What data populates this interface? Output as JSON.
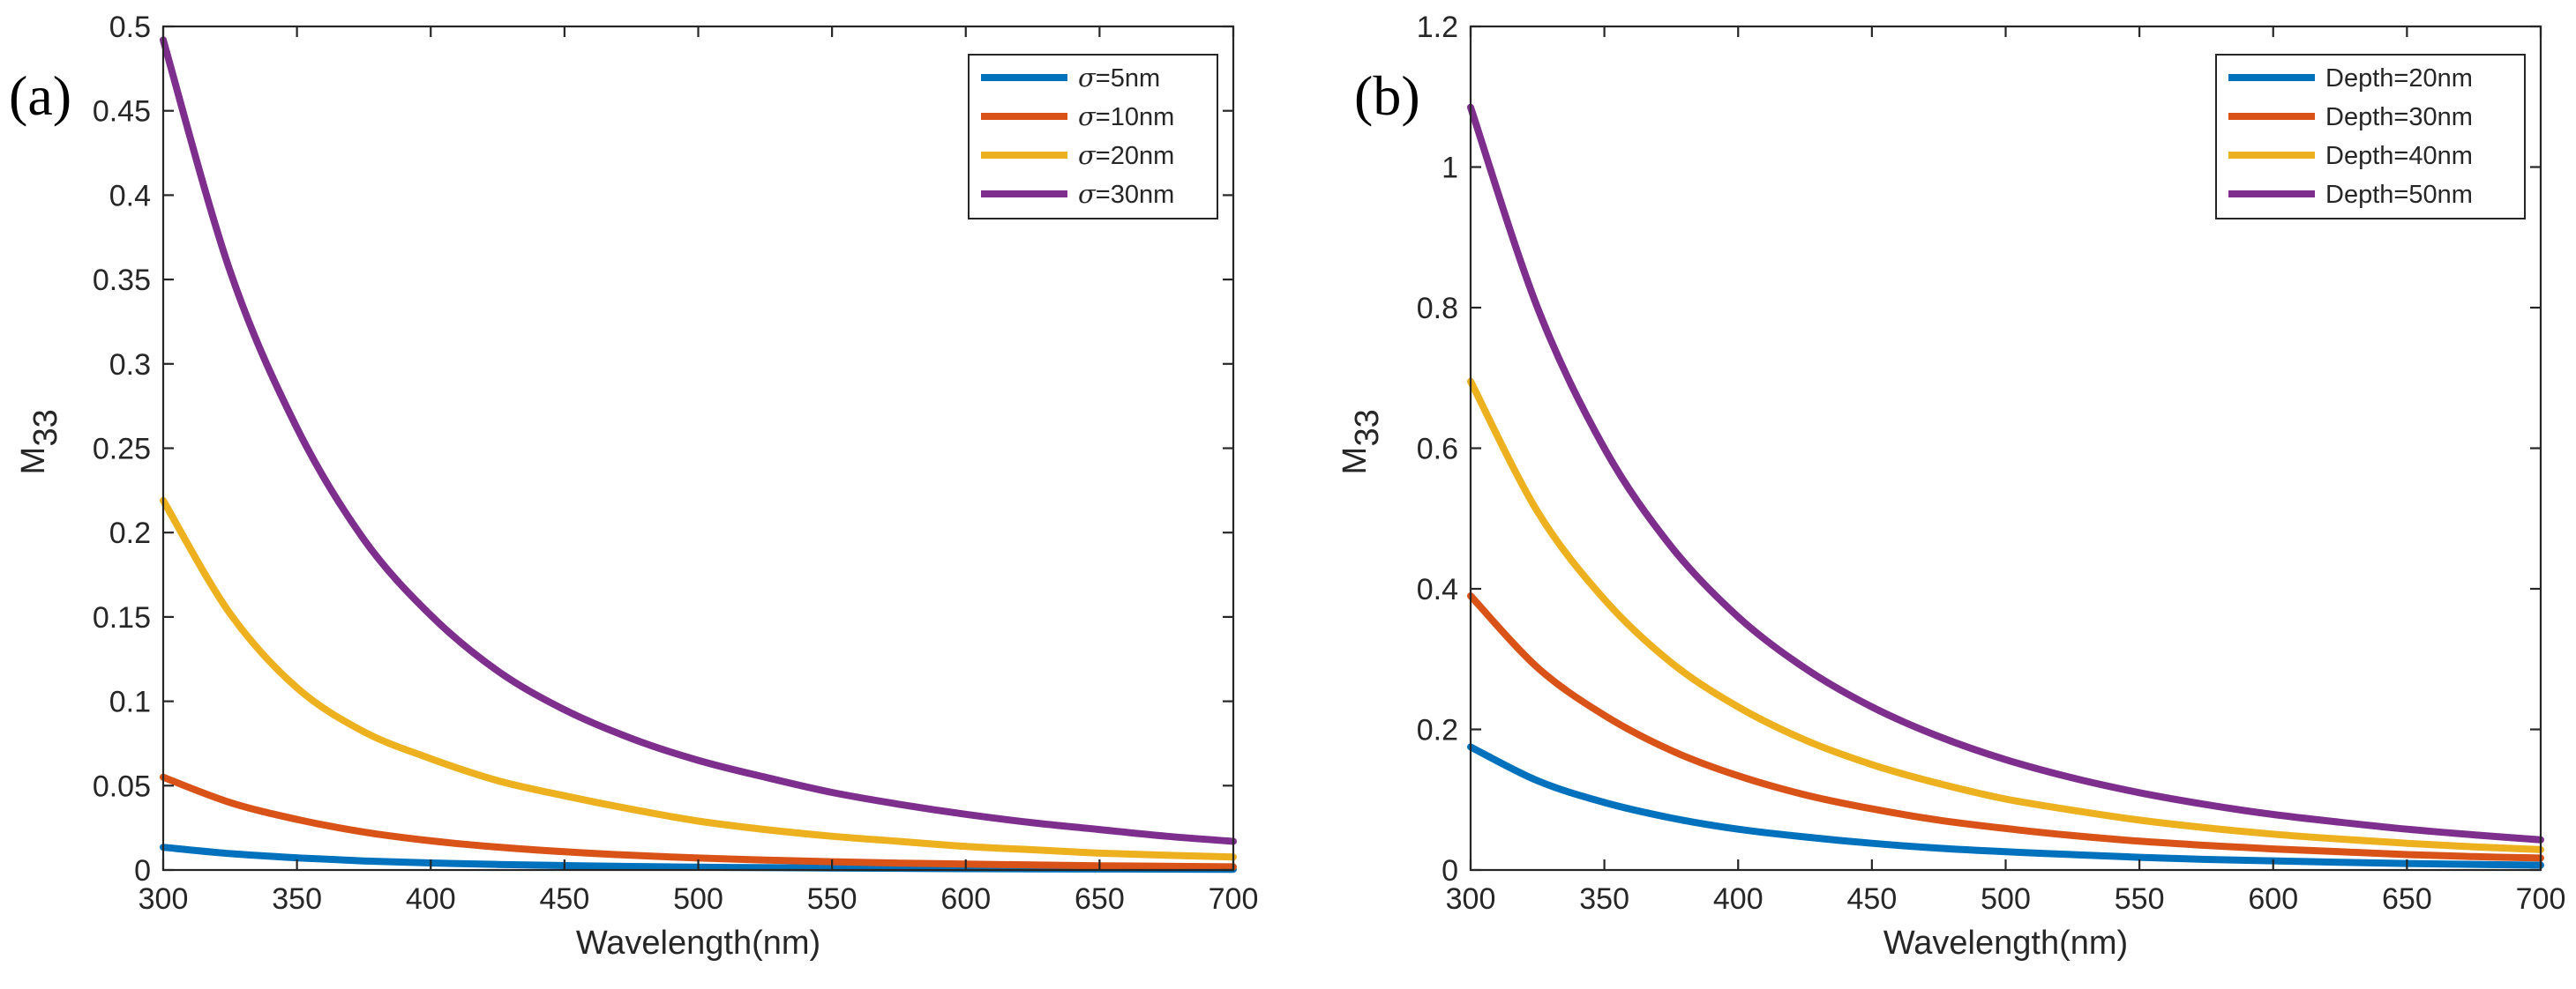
{
  "chart_data": [
    {
      "type": "line",
      "panel_label": "(a)",
      "xlabel": "Wavelength(nm)",
      "ylabel": {
        "main": "M",
        "sub": "33"
      },
      "xlim": [
        300,
        700
      ],
      "ylim": [
        0,
        0.5
      ],
      "xticks": [
        300,
        350,
        400,
        450,
        500,
        550,
        600,
        650,
        700
      ],
      "yticks": [
        0,
        0.05,
        0.1,
        0.15,
        0.2,
        0.25,
        0.3,
        0.35,
        0.4,
        0.45,
        0.5
      ],
      "grid": false,
      "legend_position": "top-right",
      "x": [
        300,
        325,
        350,
        375,
        400,
        425,
        450,
        475,
        500,
        525,
        550,
        575,
        600,
        625,
        650,
        675,
        700
      ],
      "series": [
        {
          "name": "σ=5nm",
          "symbol": "σ",
          "suffix": "=5nm",
          "color": "#0072BD",
          "values": [
            0.0135,
            0.0097,
            0.0072,
            0.0054,
            0.0042,
            0.0033,
            0.0026,
            0.0021,
            0.0017,
            0.0014,
            0.0012,
            0.001,
            0.0008,
            0.0007,
            0.0006,
            0.0005,
            0.0004
          ]
        },
        {
          "name": "σ=10nm",
          "symbol": "σ",
          "suffix": "=10nm",
          "color": "#D95319",
          "values": [
            0.055,
            0.04,
            0.03,
            0.0225,
            0.0173,
            0.0136,
            0.0108,
            0.0087,
            0.0071,
            0.0059,
            0.0049,
            0.0041,
            0.0035,
            0.003,
            0.0025,
            0.0022,
            0.0019
          ]
        },
        {
          "name": "σ=20nm",
          "symbol": "σ",
          "suffix": "=20nm",
          "color": "#EDB120",
          "values": [
            0.219,
            0.152,
            0.108,
            0.082,
            0.066,
            0.053,
            0.044,
            0.036,
            0.029,
            0.024,
            0.02,
            0.017,
            0.014,
            0.012,
            0.01,
            0.0088,
            0.0077
          ]
        },
        {
          "name": "σ=30nm",
          "symbol": "σ",
          "suffix": "=30nm",
          "color": "#7E2F8E",
          "values": [
            0.492,
            0.355,
            0.262,
            0.196,
            0.151,
            0.118,
            0.095,
            0.078,
            0.065,
            0.055,
            0.046,
            0.039,
            0.033,
            0.028,
            0.024,
            0.02,
            0.017
          ]
        }
      ]
    },
    {
      "type": "line",
      "panel_label": "(b)",
      "xlabel": "Wavelength(nm)",
      "ylabel": {
        "main": "M",
        "sub": "33"
      },
      "xlim": [
        300,
        700
      ],
      "ylim": [
        0,
        1.2
      ],
      "xticks": [
        300,
        350,
        400,
        450,
        500,
        550,
        600,
        650,
        700
      ],
      "yticks": [
        0,
        0.2,
        0.4,
        0.6,
        0.8,
        1,
        1.2
      ],
      "grid": false,
      "legend_position": "top-right",
      "x": [
        300,
        325,
        350,
        375,
        400,
        425,
        450,
        475,
        500,
        525,
        550,
        575,
        600,
        625,
        650,
        675,
        700
      ],
      "series": [
        {
          "name": "Depth=20nm",
          "symbol": "",
          "suffix": "Depth=20nm",
          "color": "#0072BD",
          "values": [
            0.175,
            0.127,
            0.096,
            0.074,
            0.058,
            0.047,
            0.038,
            0.031,
            0.026,
            0.022,
            0.018,
            0.015,
            0.013,
            0.011,
            0.0093,
            0.008,
            0.0069
          ]
        },
        {
          "name": "Depth=30nm",
          "symbol": "",
          "suffix": "Depth=30nm",
          "color": "#D95319",
          "values": [
            0.39,
            0.288,
            0.22,
            0.17,
            0.134,
            0.107,
            0.087,
            0.071,
            0.059,
            0.049,
            0.041,
            0.035,
            0.03,
            0.026,
            0.022,
            0.019,
            0.017
          ]
        },
        {
          "name": "Depth=40nm",
          "symbol": "",
          "suffix": "Depth=40nm",
          "color": "#EDB120",
          "values": [
            0.695,
            0.51,
            0.385,
            0.295,
            0.232,
            0.185,
            0.15,
            0.123,
            0.101,
            0.085,
            0.071,
            0.06,
            0.051,
            0.044,
            0.038,
            0.033,
            0.029
          ]
        },
        {
          "name": "Depth=50nm",
          "symbol": "",
          "suffix": "Depth=50nm",
          "color": "#7E2F8E",
          "values": [
            1.085,
            0.8,
            0.6,
            0.46,
            0.36,
            0.287,
            0.232,
            0.19,
            0.157,
            0.131,
            0.11,
            0.093,
            0.079,
            0.068,
            0.058,
            0.05,
            0.043
          ]
        }
      ]
    }
  ]
}
